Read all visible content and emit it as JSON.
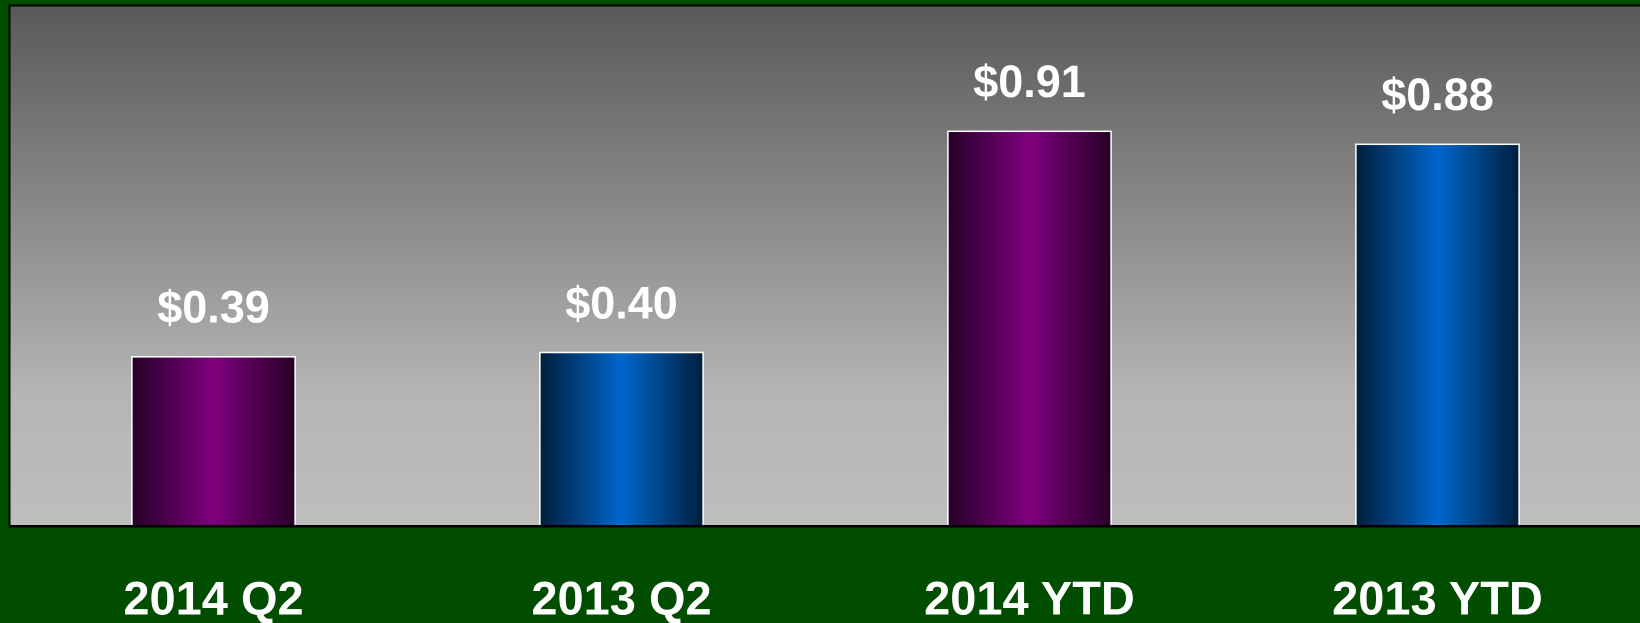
{
  "chart_data": {
    "type": "bar",
    "categories": [
      "2014 Q2",
      "2013 Q2",
      "2014 YTD",
      "2013 YTD"
    ],
    "values": [
      0.39,
      0.4,
      0.91,
      0.88
    ],
    "value_labels": [
      "$0.39",
      "$0.40",
      "$0.91",
      "$0.88"
    ],
    "colors": [
      "#800080",
      "#0066cc",
      "#800080",
      "#0066cc"
    ],
    "ylim": [
      0,
      1.2
    ]
  }
}
